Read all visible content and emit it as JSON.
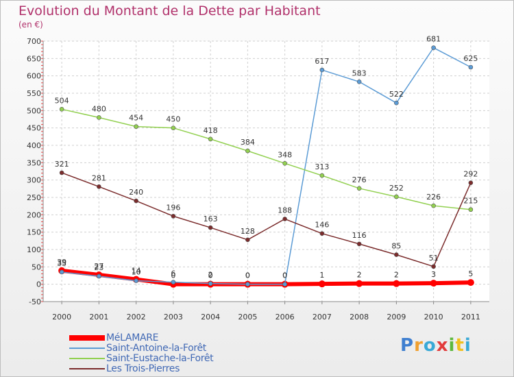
{
  "header": {
    "title": "Evolution du Montant de la Dette par Habitant",
    "unit": "(en €)"
  },
  "logo": {
    "text": "Proxiti",
    "colors": [
      "#3f7fd0",
      "#f0a030",
      "#39a9d6",
      "#e23b3b",
      "#5cb83c",
      "#f0c020",
      "#39a9d6"
    ]
  },
  "chart_data": {
    "type": "line",
    "x": [
      "2000",
      "2001",
      "2002",
      "2003",
      "2004",
      "2005",
      "2006",
      "2007",
      "2008",
      "2009",
      "2010",
      "2011"
    ],
    "ylim": [
      -50,
      700
    ],
    "yticks": [
      -50,
      0,
      50,
      100,
      150,
      200,
      250,
      300,
      350,
      400,
      450,
      500,
      550,
      600,
      650,
      700
    ],
    "grid": true,
    "legend_position": "bottom-left",
    "series": [
      {
        "name": "MéLAMARE",
        "color": "#ff0000",
        "values": [
          39,
          27,
          14,
          0,
          0,
          0,
          0,
          1,
          2,
          2,
          3,
          5
        ],
        "labels": [
          "39",
          "27",
          "14",
          "0",
          "0",
          "0",
          "0",
          "1",
          "2",
          "2",
          "3",
          "5"
        ]
      },
      {
        "name": "Saint-Antoine-la-Forêt",
        "color": "#5b9bd5",
        "values": [
          35,
          23,
          10,
          6,
          2,
          0,
          0,
          617,
          583,
          522,
          681,
          625
        ],
        "labels": [
          "35",
          "23",
          "10",
          "6",
          "2",
          "0",
          "0",
          "617",
          "583",
          "522",
          "681",
          "625"
        ]
      },
      {
        "name": "Saint-Eustache-la-Forêt",
        "color": "#92d050",
        "values": [
          504,
          480,
          454,
          450,
          418,
          384,
          348,
          313,
          276,
          252,
          226,
          215
        ],
        "labels": [
          "504",
          "480",
          "454",
          "450",
          "418",
          "384",
          "348",
          "313",
          "276",
          "252",
          "226",
          "215"
        ]
      },
      {
        "name": "Les Trois-Pierres",
        "color": "#7b2c2c",
        "values": [
          321,
          281,
          240,
          196,
          163,
          128,
          188,
          146,
          116,
          85,
          51,
          292
        ],
        "labels": [
          "321",
          "281",
          "240",
          "196",
          "163",
          "128",
          "188",
          "146",
          "116",
          "85",
          "51",
          "292"
        ]
      }
    ]
  }
}
